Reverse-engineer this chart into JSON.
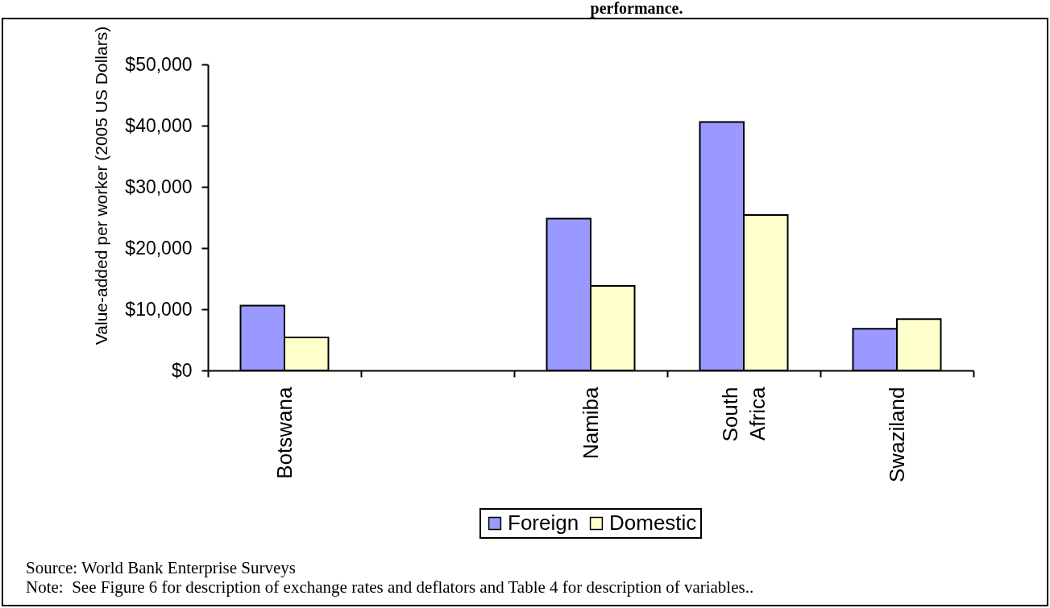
{
  "chart_data": {
    "type": "bar",
    "title": "performance.",
    "ylabel": "Value-added per worker (2005 US Dollars)",
    "categories": [
      "Botswana",
      null,
      "Namiba",
      "South Africa",
      "Swaziland"
    ],
    "series": [
      {
        "name": "Foreign",
        "color": "#9999ff",
        "values": [
          10600,
          null,
          24800,
          40600,
          6800
        ]
      },
      {
        "name": "Domestic",
        "color": "#ffffcc",
        "values": [
          5400,
          null,
          13800,
          25400,
          8400
        ]
      }
    ],
    "ylim": [
      0,
      50000
    ],
    "yticks": [
      {
        "value": 0,
        "label": "$0"
      },
      {
        "value": 10000,
        "label": "$10,000"
      },
      {
        "value": 20000,
        "label": "$20,000"
      },
      {
        "value": 30000,
        "label": "$30,000"
      },
      {
        "value": 40000,
        "label": "$40,000"
      },
      {
        "value": 50000,
        "label": "$50,000"
      }
    ],
    "legend": "bottom",
    "annotations": [
      "Source: World Bank Enterprise Surveys",
      "Note:  See Figure 6 for description of exchange rates and deflators and Table 4 for description of variables.."
    ]
  }
}
